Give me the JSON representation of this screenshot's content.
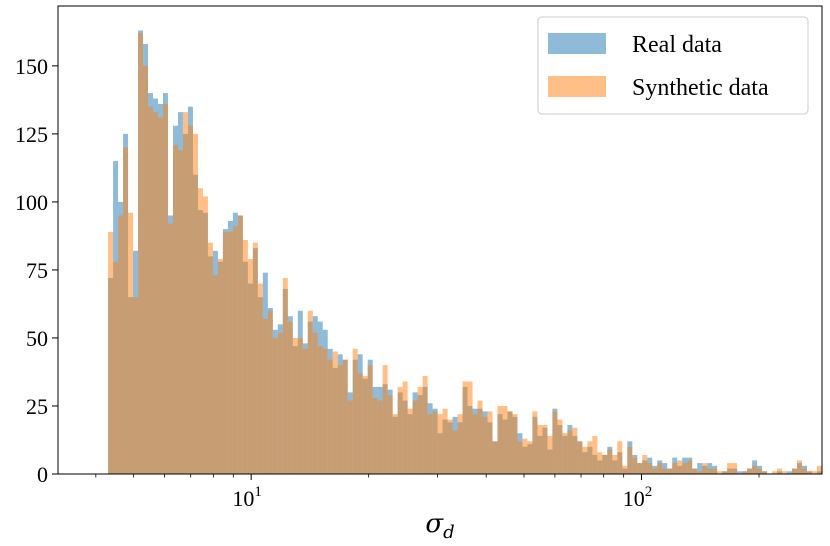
{
  "chart_data": {
    "type": "bar",
    "subtype": "overlapping-histogram",
    "title": "",
    "xlabel_main": "σ",
    "xlabel_sub": "d",
    "ylabel": "",
    "x_scale": "log",
    "xlim": [
      3.2,
      290
    ],
    "ylim": [
      0,
      172
    ],
    "grid": false,
    "legend_position": "top-right",
    "x_ticks": [
      {
        "value": 10,
        "base": "10",
        "exp": "1"
      },
      {
        "value": 100,
        "base": "10",
        "exp": "2"
      }
    ],
    "y_ticks": [
      0,
      25,
      50,
      75,
      100,
      125,
      150
    ],
    "y_tick_labels": [
      "0",
      "25",
      "50",
      "75",
      "100",
      "125",
      "150"
    ],
    "bin_start": 4.3,
    "bin_end": 290,
    "series": [
      {
        "name": "Real data",
        "color": "#1f77b4",
        "alpha": 0.5,
        "counts": [
          72,
          115,
          100,
          125,
          65,
          82,
          163,
          158,
          140,
          138,
          136,
          140,
          95,
          128,
          133,
          125,
          135,
          110,
          97,
          96,
          80,
          82,
          78,
          90,
          93,
          96,
          95,
          78,
          70,
          83,
          65,
          74,
          61,
          53,
          55,
          68,
          58,
          47,
          60,
          48,
          56,
          58,
          56,
          53,
          46,
          39,
          44,
          42,
          30,
          42,
          44,
          35,
          42,
          32,
          32,
          33,
          31,
          21,
          30,
          27,
          22,
          30,
          29,
          32,
          26,
          24,
          15,
          20,
          19,
          21,
          19,
          32,
          25,
          24,
          24,
          23,
          19,
          12,
          22,
          20,
          23,
          21,
          15,
          10,
          11,
          21,
          14,
          17,
          9,
          24,
          18,
          14,
          18,
          14,
          12,
          8,
          10,
          7,
          5,
          7,
          10,
          5,
          8,
          2,
          12,
          7,
          4,
          5,
          6,
          3,
          5,
          4,
          2,
          6,
          3,
          6,
          6,
          2,
          4,
          3,
          4,
          3,
          0,
          1,
          2,
          2,
          1,
          1,
          2,
          5,
          3,
          1,
          0,
          0,
          1,
          0,
          1,
          2,
          4,
          3,
          1,
          0,
          1
        ]
      },
      {
        "name": "Synthetic data",
        "color": "#ff7f0e",
        "alpha": 0.5,
        "counts": [
          89,
          78,
          95,
          120,
          96,
          65,
          162,
          150,
          135,
          133,
          131,
          136,
          92,
          121,
          119,
          133,
          128,
          125,
          105,
          102,
          85,
          73,
          79,
          89,
          89,
          91,
          95,
          86,
          79,
          85,
          70,
          57,
          60,
          50,
          52,
          72,
          56,
          50,
          50,
          46,
          60,
          52,
          47,
          46,
          42,
          45,
          40,
          42,
          27,
          46,
          37,
          36,
          40,
          28,
          27,
          40,
          29,
          22,
          32,
          34,
          24,
          27,
          32,
          36,
          22,
          23,
          22,
          24,
          20,
          16,
          22,
          34,
          34,
          22,
          27,
          21,
          23,
          12,
          25,
          25,
          23,
          22,
          12,
          13,
          12,
          23,
          18,
          18,
          14,
          23,
          20,
          15,
          16,
          17,
          12,
          10,
          12,
          14,
          8,
          7,
          9,
          7,
          12,
          3,
          10,
          6,
          4,
          7,
          4,
          2,
          4,
          2,
          2,
          4,
          5,
          4,
          5,
          2,
          1,
          4,
          2,
          2,
          1,
          1,
          4,
          4,
          0,
          1,
          2,
          3,
          2,
          1,
          0,
          1,
          2,
          1,
          0,
          2,
          5,
          2,
          1,
          1,
          3
        ]
      }
    ]
  }
}
